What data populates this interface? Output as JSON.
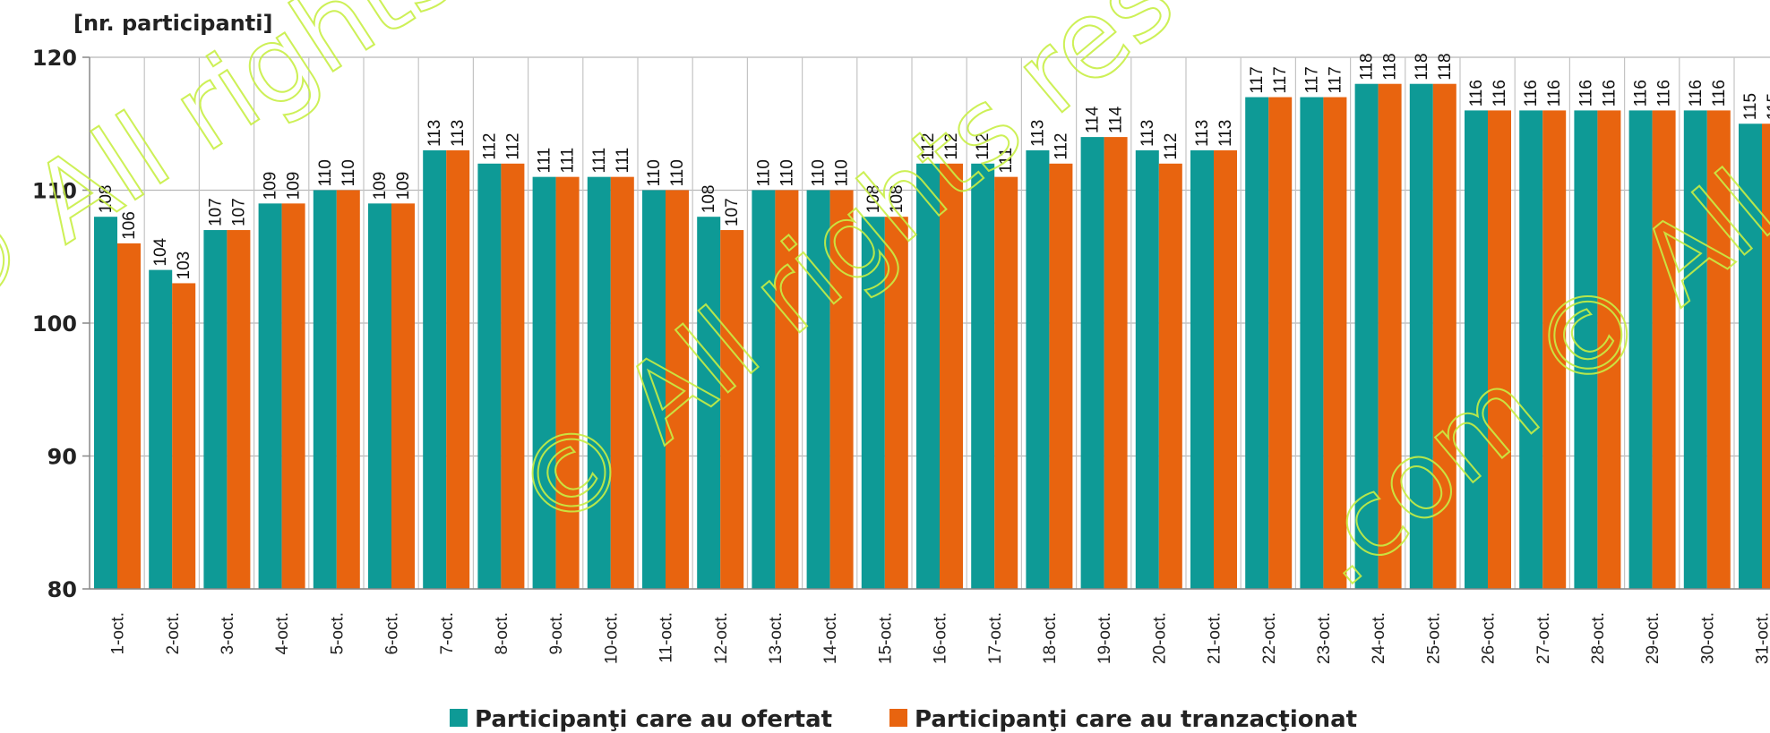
{
  "chart_data": {
    "type": "bar",
    "ylabel": "[nr. participanti]",
    "ylim": [
      80,
      120
    ],
    "yticks": [
      80,
      90,
      100,
      110,
      120
    ],
    "grid": true,
    "legend_position": "bottom",
    "categories": [
      "1-oct.",
      "2-oct.",
      "3-oct.",
      "4-oct.",
      "5-oct.",
      "6-oct.",
      "7-oct.",
      "8-oct.",
      "9-oct.",
      "10-oct.",
      "11-oct.",
      "12-oct.",
      "13-oct.",
      "14-oct.",
      "15-oct.",
      "16-oct.",
      "17-oct.",
      "18-oct.",
      "19-oct.",
      "20-oct.",
      "21-oct.",
      "22-oct.",
      "23-oct.",
      "24-oct.",
      "25-oct.",
      "26-oct.",
      "27-oct.",
      "28-oct.",
      "29-oct.",
      "30-oct.",
      "31-oct."
    ],
    "series": [
      {
        "name": "Participanţi care au ofertat",
        "color": "#0e9a96",
        "values": [
          108,
          104,
          107,
          109,
          110,
          109,
          113,
          112,
          111,
          111,
          110,
          108,
          110,
          110,
          108,
          112,
          112,
          113,
          114,
          113,
          113,
          117,
          117,
          118,
          118,
          116,
          116,
          116,
          116,
          116,
          115
        ]
      },
      {
        "name": "Participanţi care au tranzacţionat",
        "color": "#e8640f",
        "values": [
          106,
          103,
          107,
          109,
          110,
          109,
          113,
          112,
          111,
          111,
          110,
          107,
          110,
          110,
          108,
          112,
          111,
          112,
          114,
          112,
          113,
          117,
          117,
          118,
          118,
          116,
          116,
          116,
          116,
          116,
          115
        ]
      }
    ]
  },
  "watermark": {
    "text_1": "© All rights reserved",
    "text_2": "© All rights reserved",
    "text_3": ".com © All rights reserved",
    "color": "#c8ef45"
  }
}
